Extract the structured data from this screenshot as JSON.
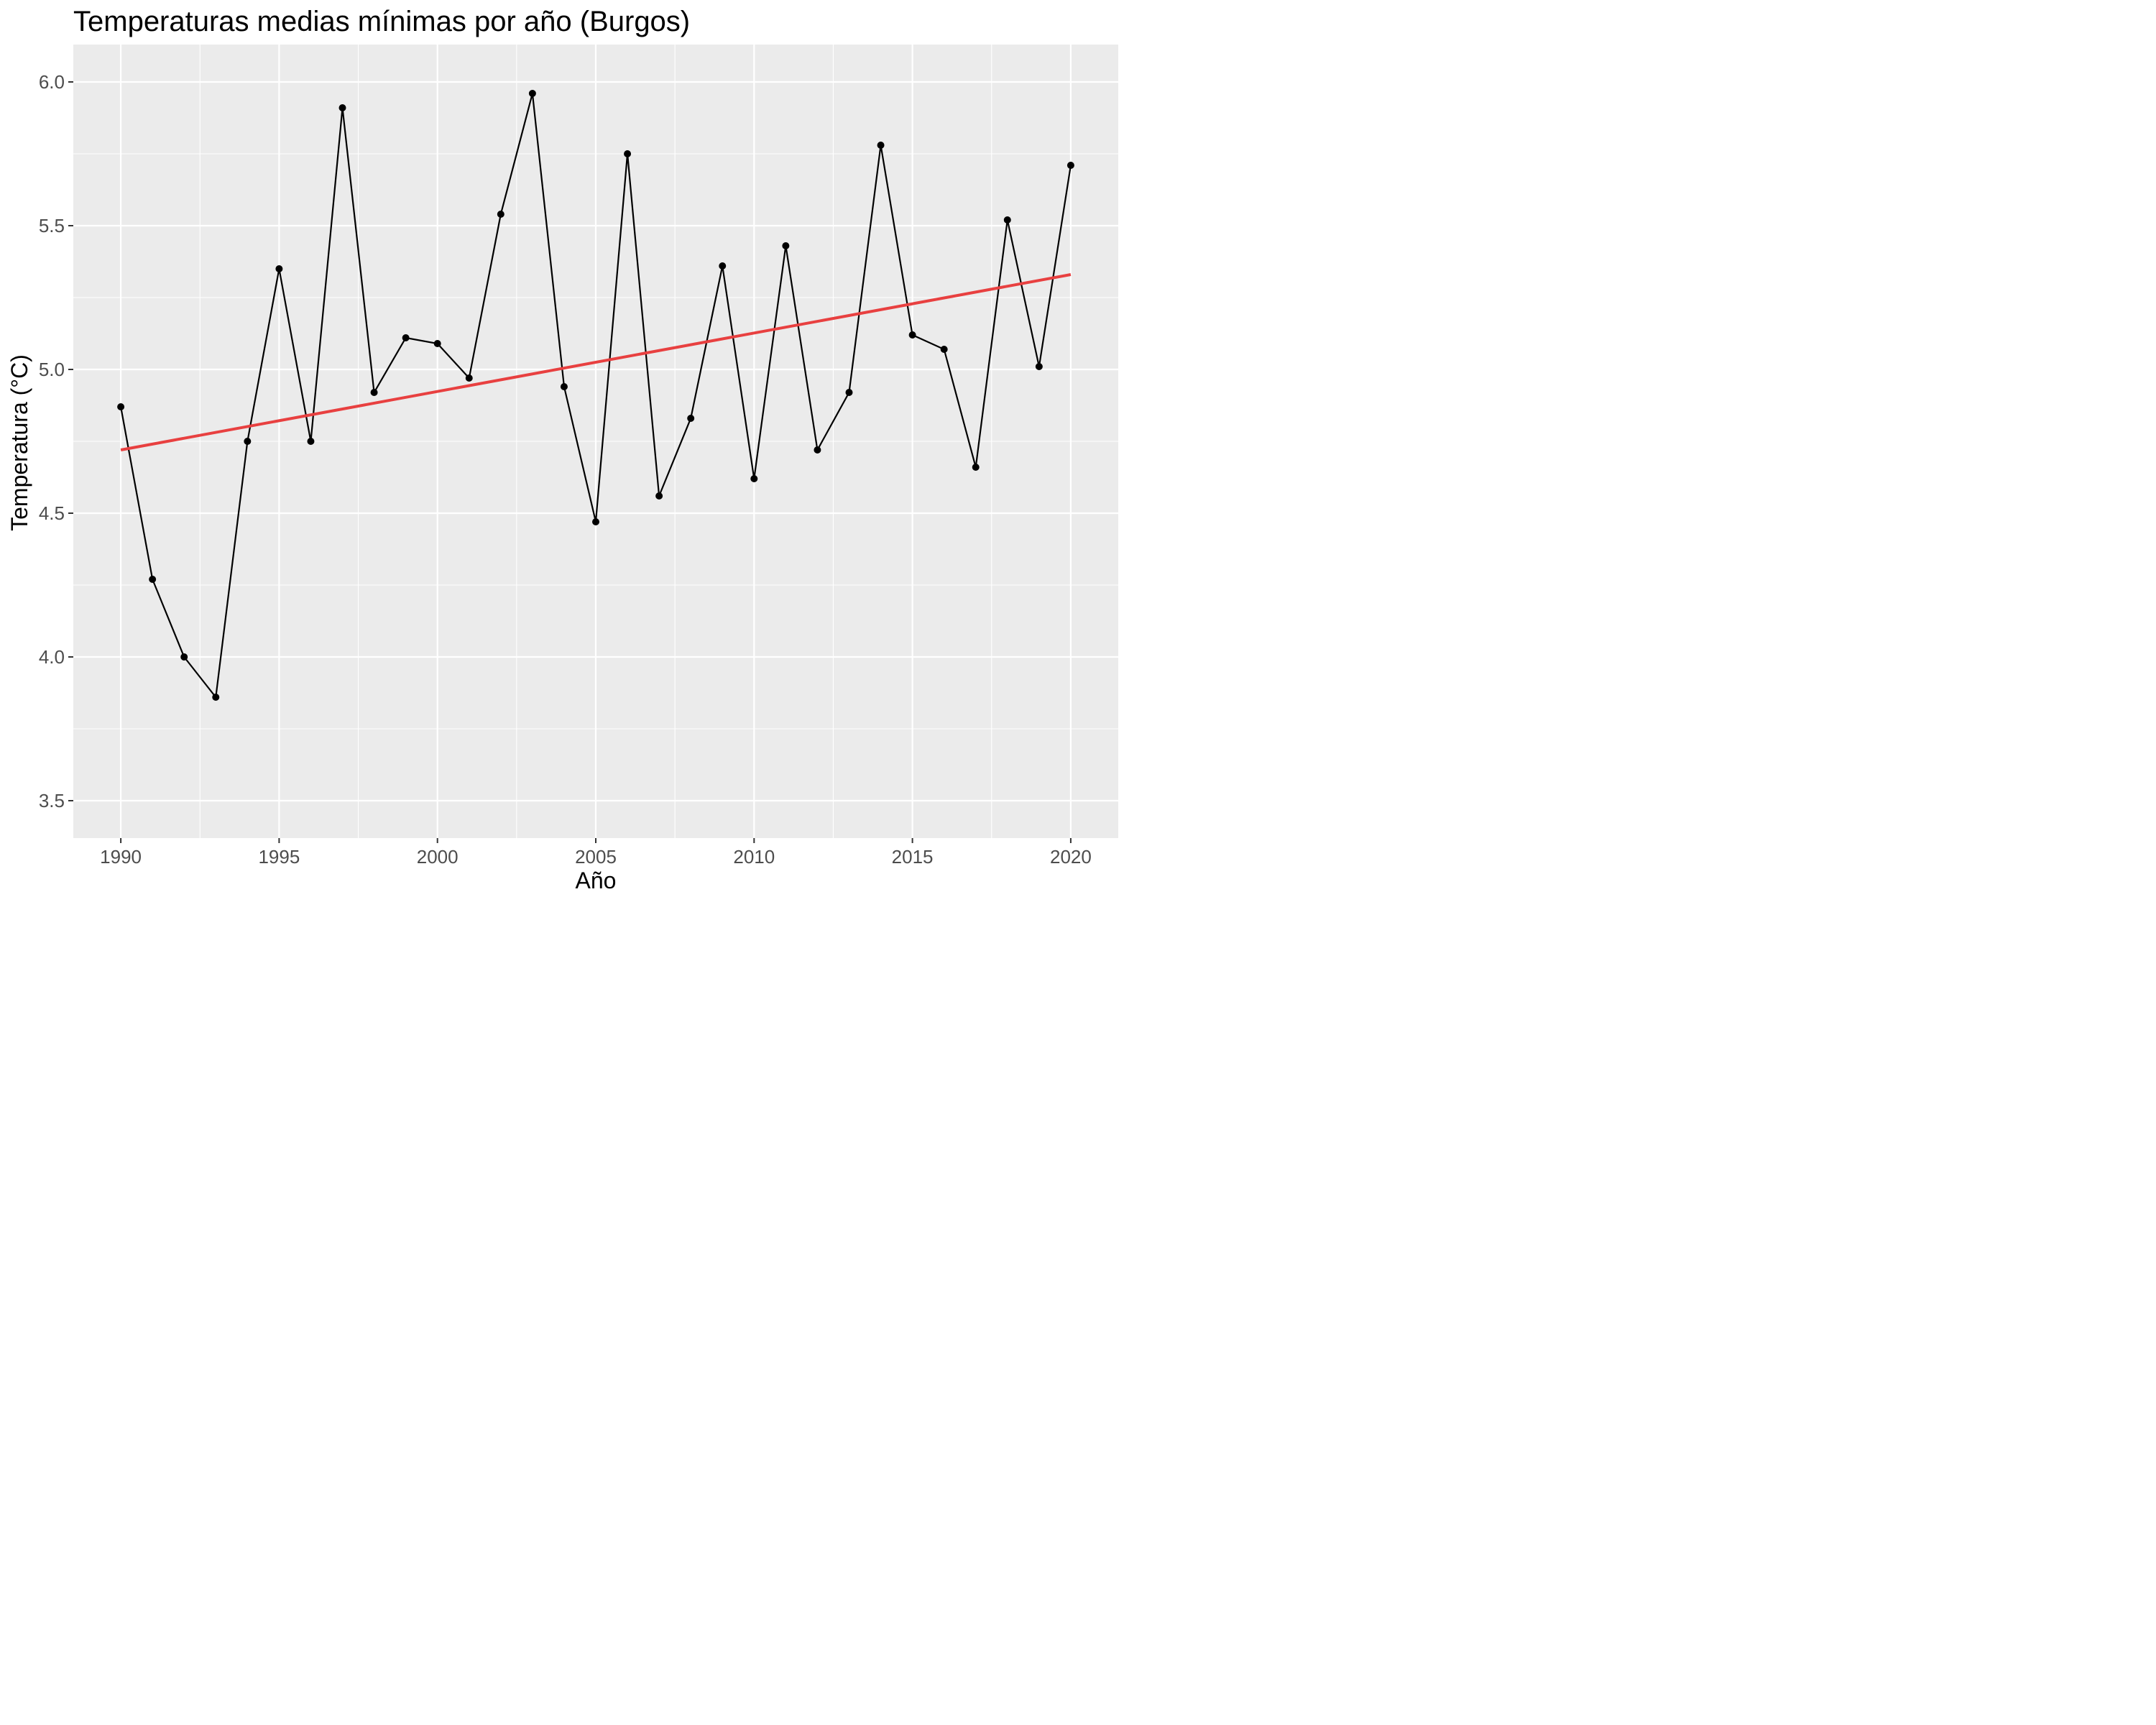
{
  "chart_data": {
    "type": "line",
    "title": "Temperaturas medias mínimas por año (Burgos)",
    "xlabel": "Año",
    "ylabel": "Temperatura (°C)",
    "xlim": [
      1988.5,
      2021.5
    ],
    "ylim": [
      3.37,
      6.13
    ],
    "x_ticks": [
      1990,
      1995,
      2000,
      2005,
      2010,
      2015,
      2020
    ],
    "x_tick_labels": [
      "1990",
      "1995",
      "2000",
      "2005",
      "2010",
      "2015",
      "2020"
    ],
    "y_ticks": [
      3.5,
      4.0,
      4.5,
      5.0,
      5.5,
      6.0
    ],
    "y_tick_labels": [
      "3.5",
      "4.0",
      "4.5",
      "5.0",
      "5.5",
      "6.0"
    ],
    "grid": true,
    "legend": "none",
    "x": [
      1990,
      1991,
      1992,
      1993,
      1994,
      1995,
      1996,
      1997,
      1998,
      1999,
      2000,
      2001,
      2002,
      2003,
      2004,
      2005,
      2006,
      2007,
      2008,
      2009,
      2010,
      2011,
      2012,
      2013,
      2014,
      2015,
      2016,
      2017,
      2018,
      2019,
      2020
    ],
    "series": [
      {
        "values": [
          4.87,
          4.27,
          4.0,
          3.86,
          4.75,
          5.35,
          4.75,
          5.91,
          4.92,
          5.11,
          5.09,
          4.97,
          5.54,
          5.96,
          4.94,
          4.47,
          5.75,
          4.56,
          4.83,
          5.36,
          4.62,
          5.43,
          4.72,
          4.92,
          5.78,
          5.12,
          5.07,
          4.66,
          5.52,
          5.01,
          5.71
        ],
        "color": "#000000"
      }
    ],
    "trend_line": {
      "x": [
        1990,
        2020
      ],
      "y": [
        4.72,
        5.33
      ],
      "color": "#e84040"
    },
    "colors": {
      "panel_background": "#ebebeb",
      "grid": "#ffffff",
      "tick_label": "#4d4d4d",
      "tick_mark": "#333333",
      "points": "#000000"
    }
  }
}
